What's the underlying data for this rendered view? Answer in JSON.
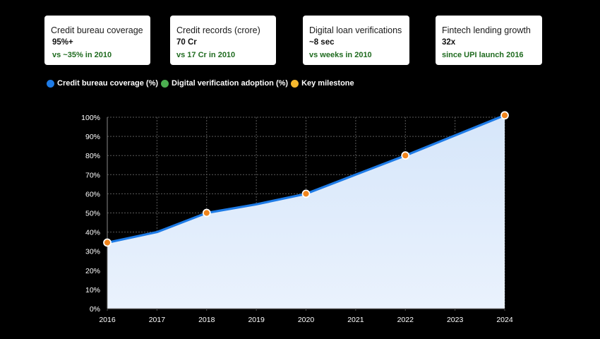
{
  "cards": [
    {
      "label": "Credit bureau coverage",
      "value": "95%+",
      "note": "vs ~35% in 2010"
    },
    {
      "label": "Credit records (crore)",
      "value": "70 Cr",
      "note": "vs 17 Cr in 2010"
    },
    {
      "label": "Digital loan verifications",
      "value": "~8 sec",
      "note": "vs weeks in 2010"
    },
    {
      "label": "Fintech lending growth",
      "value": "32x",
      "note": "since UPI launch 2016"
    }
  ],
  "legend": [
    {
      "label": "Credit bureau coverage (%)",
      "color": "#1e7be6"
    },
    {
      "label": "Digital verification adoption (%)",
      "color": "#4caf50"
    },
    {
      "label": "Key milestone",
      "color": "#f5b82e"
    }
  ],
  "chart_data": {
    "type": "area",
    "x": [
      2016,
      2017,
      2018,
      2019,
      2020,
      2021,
      2022,
      2023,
      2024
    ],
    "xticks": [
      "2016",
      "2017",
      "2018",
      "2019",
      "2020",
      "2021",
      "2022",
      "2023",
      "2024"
    ],
    "yticks": [
      "0%",
      "10%",
      "20%",
      "30%",
      "40%",
      "50%",
      "60%",
      "70%",
      "80%",
      "90%",
      "100%"
    ],
    "ylim": [
      0,
      100
    ],
    "grid": true,
    "series": [
      {
        "name": "Credit bureau coverage (%)",
        "values": [
          34.5,
          40,
          50,
          54.5,
          60,
          70,
          80,
          90.5,
          101
        ],
        "color": "#1e7be6"
      }
    ],
    "milestones": [
      {
        "x": 2016,
        "y": 34.5
      },
      {
        "x": 2018,
        "y": 50
      },
      {
        "x": 2020,
        "y": 60
      },
      {
        "x": 2022,
        "y": 80
      },
      {
        "x": 2024,
        "y": 101
      }
    ],
    "milestone_color": "#f0851e"
  }
}
